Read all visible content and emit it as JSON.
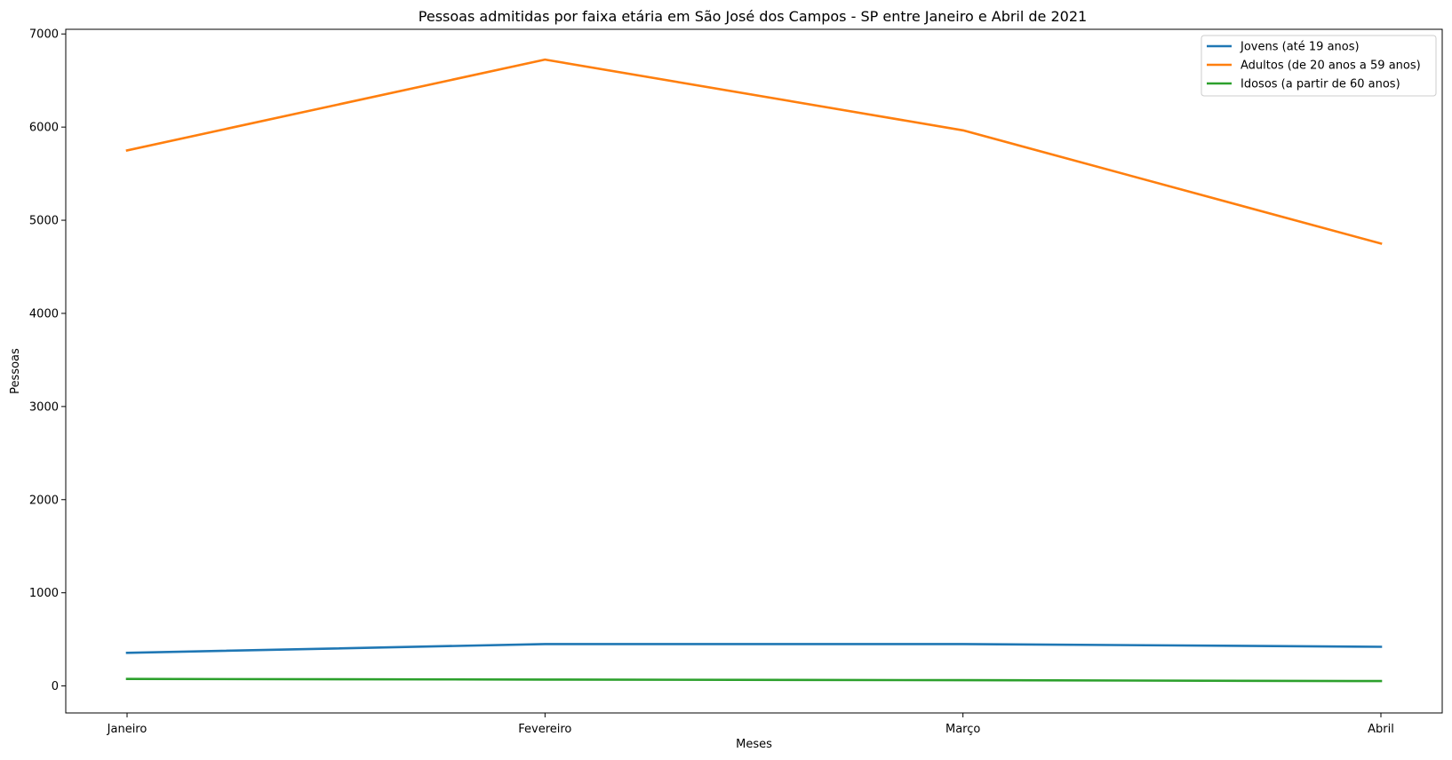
{
  "chart_data": {
    "type": "line",
    "title": "Pessoas admitidas por faixa etária em São José dos Campos - SP entre Janeiro e Abril de 2021",
    "xlabel": "Meses",
    "ylabel": "Pessoas",
    "categories": [
      "Janeiro",
      "Fevereiro",
      "Março",
      "Abril"
    ],
    "ylim": [
      -290,
      7050
    ],
    "yticks": [
      0,
      1000,
      2000,
      3000,
      4000,
      5000,
      6000,
      7000
    ],
    "grid": false,
    "legend_position": "top-right",
    "series": [
      {
        "name": "Jovens (até 19 anos)",
        "color": "#1f77b4",
        "values": [
          355,
          450,
          450,
          420
        ]
      },
      {
        "name": "Adultos (de 20 anos a 59 anos)",
        "color": "#ff7f0e",
        "values": [
          5750,
          6725,
          5965,
          4750
        ]
      },
      {
        "name": "Idosos (a partir de 60 anos)",
        "color": "#2ca02c",
        "values": [
          75,
          68,
          62,
          52
        ]
      }
    ]
  }
}
